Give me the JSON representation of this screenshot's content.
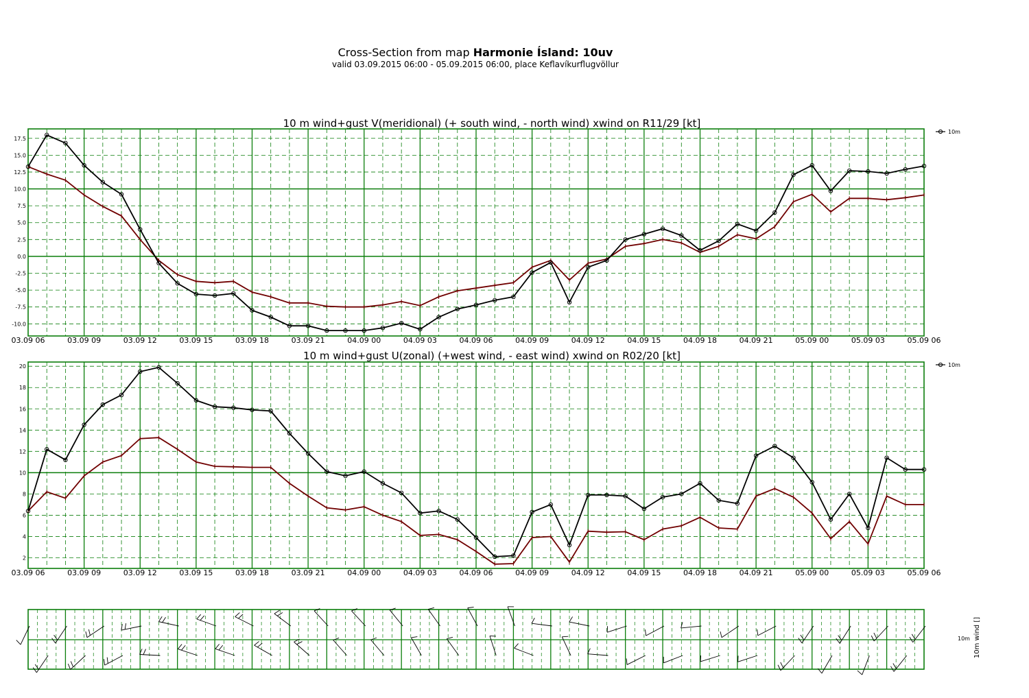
{
  "header": {
    "title_prefix": "Cross-Section from map",
    "title_bold": "Harmonie Ísland: 10uv",
    "subtitle": "valid 03.09.2015 06:00 - 05.09.2015 06:00, place Keflavíkurflugvöllur"
  },
  "colors": {
    "grid": "#0a7d0a",
    "wind": "#000000",
    "gust": "#700000"
  },
  "x_tick_labels": [
    "03.09 06",
    "03.09 09",
    "03.09 12",
    "03.09 15",
    "03.09 18",
    "03.09 21",
    "04.09 00",
    "04.09 03",
    "04.09 06",
    "04.09 09",
    "04.09 12",
    "04.09 15",
    "04.09 18",
    "04.09 21",
    "05.09 00",
    "05.09 03",
    "05.09 06"
  ],
  "barbs": {
    "legend_label": "10m",
    "axis_label": "10m wind []"
  },
  "chart_data": [
    {
      "type": "line",
      "title": "10 m wind+gust V(meridional) (+ south wind, - north wind) xwind on R11/29 [kt]",
      "legend_label": "10m",
      "x_hours": [
        0,
        1,
        2,
        3,
        4,
        5,
        6,
        7,
        8,
        9,
        10,
        11,
        12,
        13,
        14,
        15,
        16,
        17,
        18,
        19,
        20,
        21,
        22,
        23,
        24,
        25,
        26,
        27,
        28,
        29,
        30,
        31,
        32,
        33,
        34,
        35,
        36,
        37,
        38,
        39,
        40,
        41,
        42,
        43,
        44,
        45,
        46,
        47,
        48
      ],
      "ylim": [
        -11.8,
        18.9
      ],
      "yticks": [
        -10.0,
        -7.5,
        -5.0,
        -2.5,
        0.0,
        2.5,
        5.0,
        7.5,
        10.0,
        12.5,
        15.0,
        17.5
      ],
      "ytick_labels": [
        "-10.0",
        "-7.5",
        "-5.0",
        "-2.5",
        "0.0",
        "2.5",
        "5.0",
        "7.5",
        "10.0",
        "12.5",
        "15.0",
        "17.5"
      ],
      "series": [
        {
          "name": "wind",
          "markers": true,
          "values": [
            13.3,
            18.0,
            16.8,
            13.5,
            11.0,
            9.2,
            4.0,
            -1.0,
            -4.0,
            -5.6,
            -5.8,
            -5.5,
            -8.0,
            -9.0,
            -10.3,
            -10.3,
            -11.0,
            -11.0,
            -11.0,
            -10.6,
            -9.9,
            -10.8,
            -9.0,
            -7.8,
            -7.2,
            -6.5,
            -6.0,
            -2.4,
            -0.9,
            -6.8,
            -1.6,
            -0.6,
            2.5,
            3.3,
            4.1,
            3.1,
            0.9,
            2.3,
            4.8,
            3.8,
            6.5,
            12.1,
            13.5,
            9.7,
            12.7,
            12.6,
            12.3,
            12.9,
            13.4
          ]
        },
        {
          "name": "gust",
          "markers": false,
          "values": [
            13.3,
            12.2,
            11.3,
            9.1,
            7.4,
            6.0,
            2.5,
            -0.6,
            -2.7,
            -3.7,
            -3.9,
            -3.7,
            -5.3,
            -6.0,
            -6.9,
            -6.9,
            -7.4,
            -7.5,
            -7.5,
            -7.2,
            -6.7,
            -7.3,
            -6.0,
            -5.1,
            -4.7,
            -4.3,
            -3.9,
            -1.6,
            -0.6,
            -3.5,
            -1.0,
            -0.4,
            1.5,
            1.9,
            2.5,
            2.0,
            0.6,
            1.5,
            3.2,
            2.6,
            4.4,
            8.1,
            9.2,
            6.6,
            8.6,
            8.6,
            8.4,
            8.7,
            9.1
          ]
        }
      ]
    },
    {
      "type": "line",
      "title": "10 m wind+gust U(zonal) (+west wind, - east wind) xwind on R02/20 [kt]",
      "legend_label": "10m",
      "x_hours": [
        0,
        1,
        2,
        3,
        4,
        5,
        6,
        7,
        8,
        9,
        10,
        11,
        12,
        13,
        14,
        15,
        16,
        17,
        18,
        19,
        20,
        21,
        22,
        23,
        24,
        25,
        26,
        27,
        28,
        29,
        30,
        31,
        32,
        33,
        34,
        35,
        36,
        37,
        38,
        39,
        40,
        41,
        42,
        43,
        44,
        45,
        46,
        47,
        48
      ],
      "ylim": [
        1.0,
        20.4
      ],
      "yticks": [
        2,
        4,
        6,
        8,
        10,
        12,
        14,
        16,
        18,
        20
      ],
      "ytick_labels": [
        "2",
        "4",
        "6",
        "8",
        "10",
        "12",
        "14",
        "16",
        "18",
        "20"
      ],
      "series": [
        {
          "name": "wind",
          "markers": true,
          "values": [
            6.4,
            12.2,
            11.2,
            14.5,
            16.4,
            17.3,
            19.5,
            19.9,
            18.4,
            16.8,
            16.2,
            16.1,
            15.9,
            15.8,
            13.7,
            11.8,
            10.1,
            9.7,
            10.1,
            9.0,
            8.1,
            6.2,
            6.4,
            5.6,
            3.9,
            2.1,
            2.2,
            6.3,
            7.0,
            3.2,
            7.9,
            7.9,
            7.8,
            6.6,
            7.7,
            8.0,
            9.0,
            7.4,
            7.1,
            11.6,
            12.5,
            11.4,
            9.1,
            5.6,
            8.0,
            4.8,
            11.4,
            10.3,
            10.3
          ]
        },
        {
          "name": "gust",
          "markers": false,
          "values": [
            6.4,
            8.2,
            7.6,
            9.7,
            11.0,
            11.6,
            13.2,
            13.3,
            12.2,
            11.0,
            10.6,
            10.55,
            10.5,
            10.5,
            9.0,
            7.8,
            6.7,
            6.5,
            6.8,
            6.0,
            5.4,
            4.1,
            4.2,
            3.7,
            2.6,
            1.4,
            1.45,
            3.9,
            4.0,
            1.6,
            4.5,
            4.4,
            4.45,
            3.7,
            4.7,
            5.0,
            5.8,
            4.8,
            4.7,
            7.8,
            8.5,
            7.7,
            6.2,
            3.8,
            5.4,
            3.3,
            7.8,
            7.0,
            7.0
          ]
        }
      ]
    }
  ]
}
